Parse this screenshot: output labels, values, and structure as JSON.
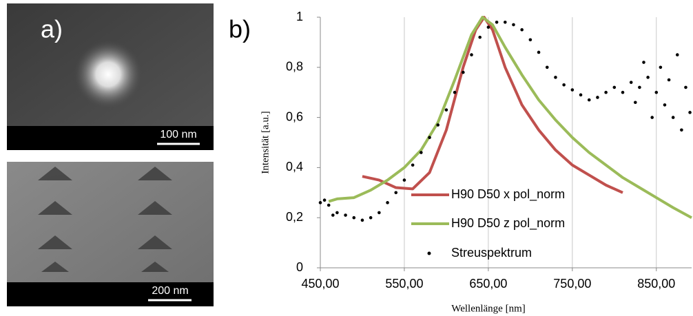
{
  "figure": {
    "label_a": "a)",
    "label_b": "b)",
    "scale_bar_top": "100 nm",
    "scale_bar_bottom": "200 nm"
  },
  "chart_data": {
    "type": "line",
    "x_label": "Wellenlänge [nm]",
    "y_label": "Intensität [a.u.]",
    "xlim": [
      450,
      892
    ],
    "ylim": [
      0,
      1
    ],
    "xticks": [
      {
        "value": 450,
        "label": "450,00"
      },
      {
        "value": 550,
        "label": "550,00"
      },
      {
        "value": 650,
        "label": "650,00"
      },
      {
        "value": 750,
        "label": "750,00"
      },
      {
        "value": 850,
        "label": "850,00"
      }
    ],
    "yticks": [
      0,
      {
        "value": 0.2,
        "label": "0,2"
      },
      {
        "value": 0.4,
        "label": "0,4"
      },
      {
        "value": 0.6,
        "label": "0,6"
      },
      {
        "value": 0.8,
        "label": "0,8"
      },
      1
    ],
    "grid": "x",
    "series": [
      {
        "name": "H90 D50 x pol_norm",
        "color": "#c0504d",
        "style": "line",
        "x": [
          500,
          520,
          540,
          560,
          580,
          600,
          620,
          635,
          645,
          655,
          670,
          690,
          710,
          730,
          750,
          770,
          790,
          810
        ],
        "values": [
          0.365,
          0.35,
          0.32,
          0.315,
          0.38,
          0.55,
          0.8,
          0.95,
          1.0,
          0.95,
          0.8,
          0.65,
          0.55,
          0.47,
          0.41,
          0.37,
          0.33,
          0.3
        ]
      },
      {
        "name": "H90 D50 z pol_norm",
        "color": "#9bbb59",
        "style": "line",
        "x": [
          460,
          470,
          490,
          510,
          530,
          550,
          570,
          590,
          610,
          630,
          643,
          655,
          670,
          690,
          710,
          730,
          750,
          770,
          790,
          810,
          830,
          850,
          870,
          892
        ],
        "values": [
          0.265,
          0.275,
          0.28,
          0.31,
          0.35,
          0.4,
          0.47,
          0.58,
          0.75,
          0.93,
          1.0,
          0.97,
          0.88,
          0.77,
          0.67,
          0.59,
          0.52,
          0.46,
          0.41,
          0.36,
          0.32,
          0.28,
          0.24,
          0.2
        ]
      },
      {
        "name": "Streuspektrum",
        "color": "#000000",
        "style": "scatter",
        "x": [
          450,
          455,
          460,
          465,
          470,
          480,
          490,
          500,
          510,
          520,
          530,
          540,
          550,
          560,
          570,
          580,
          590,
          600,
          610,
          620,
          630,
          640,
          650,
          660,
          670,
          680,
          690,
          700,
          710,
          720,
          730,
          740,
          750,
          760,
          770,
          780,
          790,
          800,
          810,
          820,
          825,
          830,
          835,
          840,
          845,
          850,
          855,
          860,
          865,
          870,
          875,
          880,
          885,
          890
        ],
        "values": [
          0.26,
          0.27,
          0.25,
          0.21,
          0.22,
          0.21,
          0.2,
          0.19,
          0.2,
          0.22,
          0.26,
          0.3,
          0.35,
          0.41,
          0.46,
          0.52,
          0.57,
          0.63,
          0.7,
          0.78,
          0.85,
          0.92,
          0.96,
          0.98,
          0.98,
          0.97,
          0.95,
          0.91,
          0.86,
          0.8,
          0.76,
          0.73,
          0.71,
          0.69,
          0.67,
          0.68,
          0.7,
          0.72,
          0.7,
          0.74,
          0.66,
          0.72,
          0.82,
          0.76,
          0.6,
          0.7,
          0.8,
          0.65,
          0.75,
          0.6,
          0.85,
          0.55,
          0.72,
          0.62
        ]
      }
    ]
  }
}
